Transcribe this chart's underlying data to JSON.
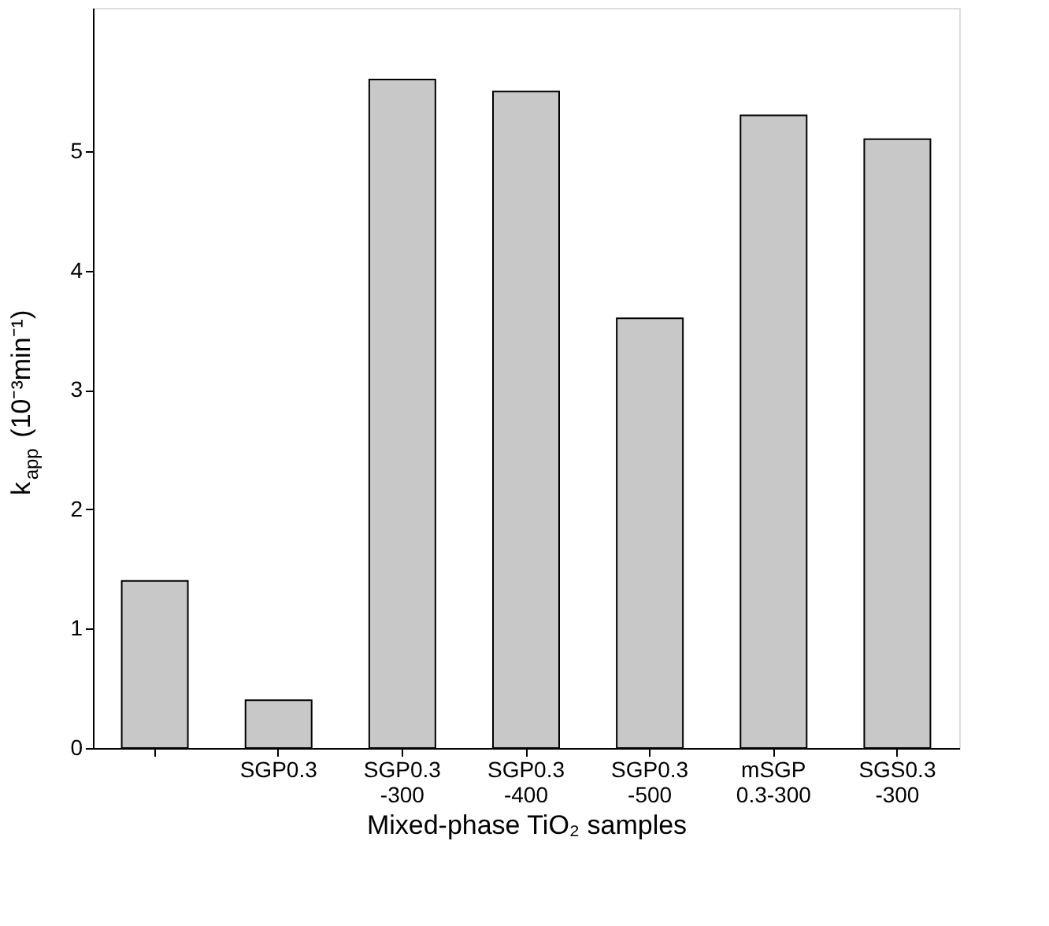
{
  "chart_data": {
    "type": "bar",
    "xlabel": "Mixed-phase TiO₂ samples",
    "ylabel": "k$_{app}$ (10⁻³min⁻¹)",
    "categories": [
      null,
      "SGP0.3",
      "SGP0.3\n-300",
      "SGP0.3\n-400",
      "SGP0.3\n-500",
      "mSGP\n0.3-300",
      "SGS0.3\n-300"
    ],
    "values": [
      1.4,
      0.4,
      5.6,
      5.5,
      3.6,
      5.3,
      5.1
    ],
    "color": "#c8c8c8",
    "ylim": [
      0,
      6.2
    ],
    "yticks": [
      0,
      1,
      2,
      3,
      4,
      5
    ],
    "grid": false
  }
}
